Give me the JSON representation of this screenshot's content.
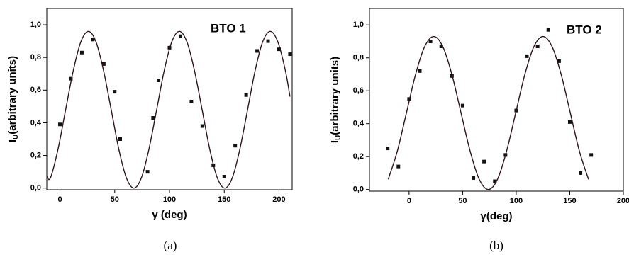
{
  "chart_data": [
    {
      "type": "scatter",
      "annotation": "BTO 1",
      "caption": "(a)",
      "x_label": "γ (deg)",
      "y_label": {
        "main": "I",
        "sub": "U",
        "rest": "(arbitrary units)"
      },
      "xlim": [
        -12,
        212
      ],
      "ylim": [
        -0.01,
        1.1
      ],
      "xticks": [
        0,
        50,
        100,
        150,
        200
      ],
      "yticks": [
        {
          "value": 0,
          "label": "0,0"
        },
        {
          "value": 0.2,
          "label": "0,2"
        },
        {
          "value": 0.4,
          "label": "0,4"
        },
        {
          "value": 0.6,
          "label": "0,6"
        },
        {
          "value": 0.8,
          "label": "0,8"
        },
        {
          "value": 1.0,
          "label": "1,0"
        }
      ],
      "series": [
        {
          "mode": "markers",
          "color": "#111111",
          "x": [
            0,
            10,
            20,
            30,
            40,
            50,
            55,
            80,
            85,
            90,
            100,
            110,
            120,
            130,
            140,
            150,
            160,
            170,
            180,
            190,
            200,
            210
          ],
          "values": [
            0.39,
            0.67,
            0.83,
            0.91,
            0.76,
            0.59,
            0.3,
            0.1,
            0.43,
            0.66,
            0.86,
            0.93,
            0.53,
            0.38,
            0.14,
            0.07,
            0.26,
            0.57,
            0.84,
            0.9,
            0.85,
            0.82
          ]
        },
        {
          "mode": "line",
          "color": "#2e1222",
          "x": [
            -12,
            -8.6,
            -1.7,
            5.2,
            12.2,
            19.1,
            26,
            32.9,
            39.8,
            46.8,
            53.7,
            60.6,
            67.5,
            74.4,
            81.3,
            88.3,
            95.2,
            102.1,
            109,
            115.9,
            122.8,
            129.8,
            136.7,
            143.6,
            150.5,
            157.4,
            164.3,
            171.3,
            178.2,
            185.1,
            192,
            198.9,
            205.8,
            210
          ],
          "values": [
            0.07,
            0.064,
            0.24,
            0.48,
            0.72,
            0.896,
            0.96,
            0.896,
            0.72,
            0.48,
            0.24,
            0.064,
            0,
            0.064,
            0.24,
            0.48,
            0.72,
            0.896,
            0.96,
            0.896,
            0.72,
            0.48,
            0.24,
            0.064,
            0,
            0.064,
            0.24,
            0.48,
            0.72,
            0.896,
            0.96,
            0.896,
            0.72,
            0.56
          ]
        }
      ]
    },
    {
      "type": "scatter",
      "annotation": "BTO 2",
      "caption": "(b)",
      "x_label": "γ(deg)",
      "y_label": {
        "main": "I",
        "sub": "U",
        "rest": "(arbitrary units)"
      },
      "xlim": [
        -37,
        200
      ],
      "ylim": [
        -0.01,
        1.1
      ],
      "xticks": [
        0,
        50,
        100,
        150,
        200
      ],
      "yticks": [
        {
          "value": 0,
          "label": "0,0"
        },
        {
          "value": 0.2,
          "label": "0,2"
        },
        {
          "value": 0.4,
          "label": "0,4"
        },
        {
          "value": 0.6,
          "label": "0,6"
        },
        {
          "value": 0.8,
          "label": "0,8"
        },
        {
          "value": 1.0,
          "label": "1,0"
        }
      ],
      "series": [
        {
          "mode": "markers",
          "color": "#111111",
          "x": [
            -20,
            -10,
            0,
            10,
            20,
            30,
            40,
            50,
            60,
            70,
            80,
            90,
            100,
            110,
            120,
            130,
            140,
            150,
            160,
            170
          ],
          "values": [
            0.25,
            0.14,
            0.55,
            0.72,
            0.9,
            0.87,
            0.69,
            0.51,
            0.07,
            0.17,
            0.05,
            0.21,
            0.48,
            0.81,
            0.87,
            0.97,
            0.78,
            0.41,
            0.1,
            0.21
          ]
        },
        {
          "mode": "line",
          "color": "#2e1222",
          "x": [
            -19.5,
            -11,
            -2.5,
            6,
            14.5,
            23,
            31.5,
            40,
            48.5,
            57,
            65.5,
            74,
            82.5,
            91,
            99.5,
            108,
            116.5,
            125,
            133.5,
            142,
            150.5,
            159,
            167.5
          ],
          "values": [
            0.062,
            0.233,
            0.465,
            0.698,
            0.868,
            0.93,
            0.868,
            0.698,
            0.465,
            0.233,
            0.062,
            0,
            0.062,
            0.233,
            0.465,
            0.698,
            0.868,
            0.93,
            0.868,
            0.698,
            0.465,
            0.233,
            0.062
          ]
        }
      ]
    }
  ]
}
